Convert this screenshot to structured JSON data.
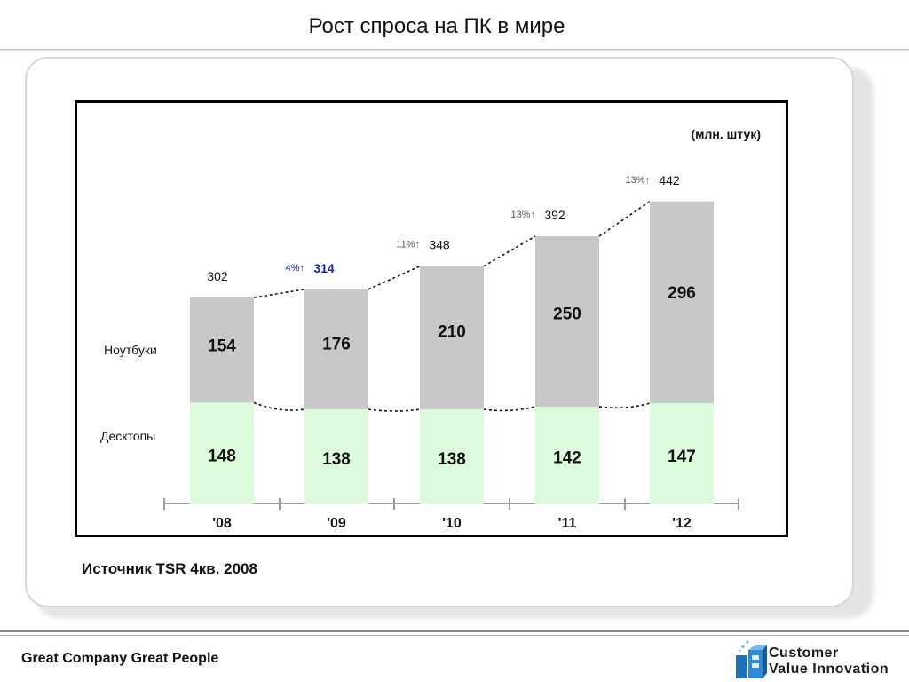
{
  "slide": {
    "title": "Рост спроса на ПК в мире",
    "source": "Источник TSR 4кв. 2008"
  },
  "footer": {
    "tagline": "Great Company Great People",
    "logo_line1": "Customer",
    "logo_line2": "Value Innovation"
  },
  "chart_data": {
    "type": "bar",
    "stacked": true,
    "unit_label": "(млн. штук)",
    "categories": [
      "'08",
      "'09",
      "'10",
      "'11",
      "'12"
    ],
    "series": [
      {
        "name": "Десктопы",
        "values": [
          148,
          138,
          138,
          142,
          147
        ]
      },
      {
        "name": "Ноутбуки",
        "values": [
          154,
          176,
          210,
          250,
          296
        ]
      }
    ],
    "totals": [
      "302",
      "314",
      "348",
      "392",
      "442"
    ],
    "growth": [
      null,
      "4%↑",
      "11%↑",
      "13%↑",
      "13%↑"
    ],
    "colors": {
      "desktops": "#dcfadc",
      "notebooks": "#c8c8c8",
      "growth_2009": "#1a23a8",
      "growth_other": "#555555"
    },
    "legend_placement": "left"
  }
}
